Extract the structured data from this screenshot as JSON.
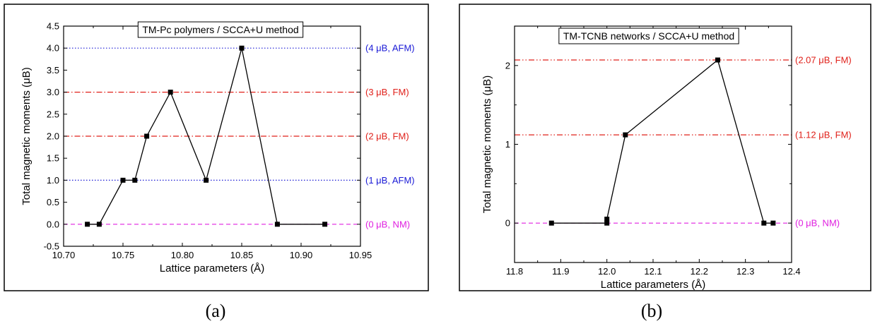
{
  "chart_data": [
    {
      "type": "line",
      "title": "TM-Pc polymers / SCCA+U method",
      "xlabel": "Lattice parameters (Å)",
      "ylabel": "Total magnetic moments (μB)",
      "panel_label": "(a)",
      "xlim": [
        10.7,
        10.95
      ],
      "ylim": [
        -0.5,
        4.5
      ],
      "xticks": [
        10.7,
        10.75,
        10.8,
        10.85,
        10.9,
        10.95
      ],
      "xtick_labels": [
        "10.70",
        "10.75",
        "10.80",
        "10.85",
        "10.90",
        "10.95"
      ],
      "yticks": [
        -0.5,
        0.0,
        0.5,
        1.0,
        1.5,
        2.0,
        2.5,
        3.0,
        3.5,
        4.0,
        4.5
      ],
      "ytick_labels": [
        "-0.5",
        "0.0",
        "0.5",
        "1.0",
        "1.5",
        "2.0",
        "2.5",
        "3.0",
        "3.5",
        "4.0",
        "4.5"
      ],
      "grid": false,
      "series": [
        {
          "x": [
            10.72,
            10.73,
            10.75,
            10.76,
            10.77,
            10.79,
            10.82,
            10.85,
            10.88,
            10.92
          ],
          "y": [
            0,
            0,
            1,
            1,
            2,
            3,
            1,
            4,
            0,
            0
          ],
          "color": "#000000",
          "marker": "square"
        }
      ],
      "reference_lines": [
        {
          "y": 4,
          "label": "(4 μB, AFM)",
          "color": "#1a1ad6",
          "style": "dotted"
        },
        {
          "y": 3,
          "label": "(3 μB, FM)",
          "color": "#e0201a",
          "style": "dashdot"
        },
        {
          "y": 2,
          "label": "(2 μB, FM)",
          "color": "#e0201a",
          "style": "dashdot"
        },
        {
          "y": 1,
          "label": "(1 μB, AFM)",
          "color": "#1a1ad6",
          "style": "dotted"
        },
        {
          "y": 0,
          "label": "(0 μB, NM)",
          "color": "#e020e0",
          "style": "dashed"
        }
      ]
    },
    {
      "type": "line",
      "title": "TM-TCNB networks / SCCA+U method",
      "xlabel": "Lattice parameters (Å)",
      "ylabel": "Total magnetic moments (μB)",
      "panel_label": "(b)",
      "xlim": [
        11.8,
        12.4
      ],
      "ylim": [
        -0.5,
        2.5
      ],
      "xticks": [
        11.8,
        11.9,
        12.0,
        12.1,
        12.2,
        12.3,
        12.4
      ],
      "xtick_labels": [
        "11.8",
        "11.9",
        "12.0",
        "12.1",
        "12.2",
        "12.3",
        "12.4"
      ],
      "yticks": [
        0,
        1,
        2
      ],
      "ytick_labels": [
        "0",
        "1",
        "2"
      ],
      "grid": false,
      "series": [
        {
          "x": [
            11.88,
            12.0,
            12.0,
            12.04,
            12.24,
            12.34,
            12.36
          ],
          "y": [
            0,
            0,
            0.05,
            1.12,
            2.07,
            0,
            0
          ],
          "color": "#000000",
          "marker": "square"
        }
      ],
      "reference_lines": [
        {
          "y": 2.07,
          "label": "(2.07 μB, FM)",
          "color": "#e0201a",
          "style": "dashdotdot"
        },
        {
          "y": 1.12,
          "label": "(1.12 μB, FM)",
          "color": "#e0201a",
          "style": "dashdotdot"
        },
        {
          "y": 0,
          "label": "(0 μB, NM)",
          "color": "#e020e0",
          "style": "dashed"
        }
      ]
    }
  ]
}
